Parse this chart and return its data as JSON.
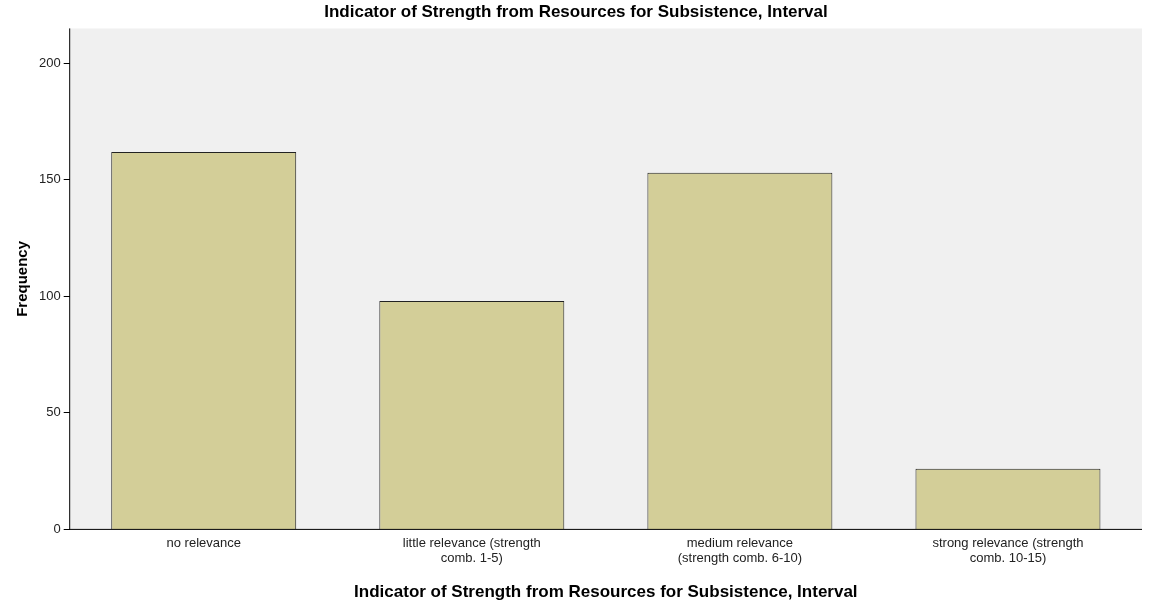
{
  "chart_data": {
    "type": "bar",
    "title": "Indicator of Strength from Resources for Subsistence, Interval",
    "xlabel": "Indicator of Strength from Resources for Subsistence, Interval",
    "ylabel": "Frequency",
    "categories": [
      "no relevance",
      "little relevance (strength comb. 1-5)",
      "medium relevance (strength comb. 6-10)",
      "strong relevance (strength comb. 10-15)"
    ],
    "values": [
      162,
      98,
      153,
      26
    ],
    "color": "#d3ce98",
    "ylim": [
      0,
      215
    ],
    "yticks": [
      0,
      50,
      100,
      150,
      200
    ],
    "grid": false,
    "legend": false
  }
}
